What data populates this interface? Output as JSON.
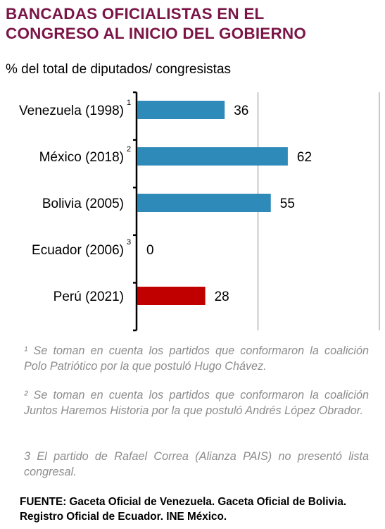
{
  "header": {
    "title_line1": "BANCADAS OFICIALISTAS EN EL",
    "title_line2": "CONGRESO AL INICIO DEL GOBIERNO",
    "subtitle": "% del total de diputados/ congresistas"
  },
  "chart_data": {
    "type": "bar",
    "orientation": "horizontal",
    "categories": [
      "Venezuela (1998)",
      "México (2018)",
      "Bolivia (2005)",
      "Ecuador (2006)",
      "Perú (2021)"
    ],
    "footnote_marks": [
      "1",
      "2",
      "",
      "3",
      ""
    ],
    "values": [
      36,
      62,
      55,
      0,
      28
    ],
    "data_labels": [
      "36",
      "62",
      "55",
      "0",
      "28"
    ],
    "colors": [
      "#2e8ab9",
      "#2e8ab9",
      "#2e8ab9",
      "#2e8ab9",
      "#c00000"
    ],
    "xlim": [
      0,
      100
    ],
    "gridlines": [
      50,
      100
    ],
    "grid": true,
    "gridline_color": "#c8c8c8",
    "axis_color": "#000000"
  },
  "notes": [
    "¹ Se toman en cuenta los partidos que conformaron la coalición Polo Patriótico por la que postuló Hugo Chávez.",
    "² Se toman en cuenta los partidos que conformaron la coalición Juntos Haremos Historia por la que postuló Andrés López Obrador.",
    "3 El partido de Rafael Correa (Alianza PAIS) no presentó lista congresal."
  ],
  "source": "FUENTE: Gaceta Oficial de Venezuela. Gaceta Oficial de Bolivia. Registro Oficial de Ecuador. INE México."
}
